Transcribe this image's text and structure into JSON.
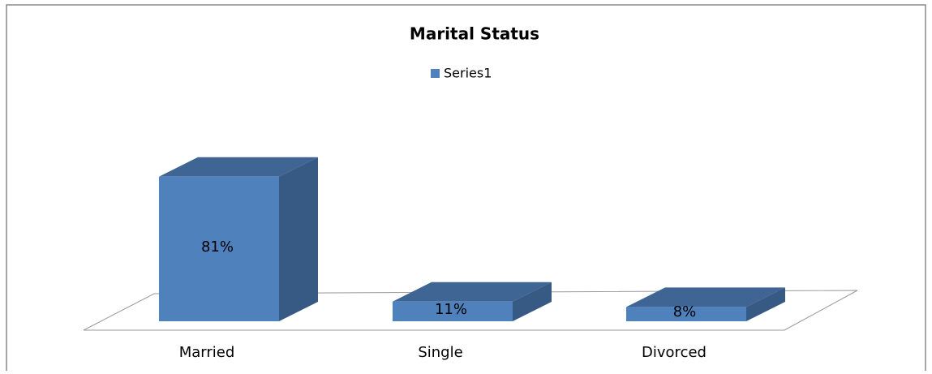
{
  "chart_data": {
    "type": "bar3d",
    "title": "Marital Status",
    "categories": [
      "Married",
      "Single",
      "Divorced"
    ],
    "series": [
      {
        "name": "Series1",
        "color": "#4f81bd",
        "values": [
          81,
          11,
          8
        ],
        "value_labels": [
          "81%",
          "11%",
          "8%"
        ]
      }
    ]
  }
}
